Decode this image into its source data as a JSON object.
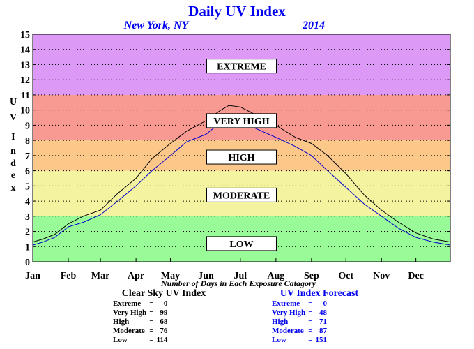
{
  "chart_data": {
    "type": "line",
    "title": "Daily UV Index",
    "subtitle_location": "New York, NY",
    "subtitle_year": "2014",
    "ylabel": [
      "U",
      "V",
      "I",
      "n",
      "d",
      "e",
      "x"
    ],
    "xlabel": "Number of Days in Each Exposure Catagory",
    "ylim": [
      0,
      15
    ],
    "xlim": [
      1,
      365
    ],
    "y_ticks": [
      0,
      1,
      2,
      3,
      4,
      5,
      6,
      7,
      8,
      9,
      10,
      11,
      12,
      13,
      14,
      15
    ],
    "x_tick_labels": [
      {
        "label": "Jan",
        "day": 1
      },
      {
        "label": "Feb",
        "day": 32
      },
      {
        "label": "Mar",
        "day": 60
      },
      {
        "label": "Apr",
        "day": 91
      },
      {
        "label": "May",
        "day": 121
      },
      {
        "label": "Jun",
        "day": 152
      },
      {
        "label": "Jul",
        "day": 182
      },
      {
        "label": "Aug",
        "day": 213
      },
      {
        "label": "Sep",
        "day": 244
      },
      {
        "label": "Oct",
        "day": 274
      },
      {
        "label": "Nov",
        "day": 305
      },
      {
        "label": "Dec",
        "day": 335
      }
    ],
    "grid": "horizontal dotted",
    "zones": [
      {
        "label": "LOW",
        "from": 0,
        "to": 3,
        "color": "#98fb98",
        "label_y": 1.2
      },
      {
        "label": "MODERATE",
        "from": 3,
        "to": 6,
        "color": "#f3f3a0",
        "label_y": 4.4
      },
      {
        "label": "HIGH",
        "from": 6,
        "to": 8,
        "color": "#fcc88a",
        "label_y": 6.9
      },
      {
        "label": "VERY HIGH",
        "from": 8,
        "to": 11,
        "color": "#f99a92",
        "label_y": 9.3
      },
      {
        "label": "EXTREME",
        "from": 11,
        "to": 15,
        "color": "#dd99f6",
        "label_y": 12.9
      }
    ],
    "series": [
      {
        "color": "#000000",
        "x": [
          1,
          10,
          20,
          32,
          45,
          60,
          75,
          91,
          105,
          121,
          135,
          152,
          165,
          172,
          182,
          195,
          213,
          230,
          244,
          258,
          274,
          290,
          305,
          320,
          335,
          350,
          365
        ],
        "y": [
          1.3,
          1.5,
          1.8,
          2.5,
          3.0,
          3.4,
          4.5,
          5.5,
          6.8,
          7.8,
          8.6,
          9.3,
          10.0,
          10.3,
          10.2,
          9.7,
          9.0,
          8.2,
          7.8,
          7.0,
          5.8,
          4.4,
          3.4,
          2.6,
          1.9,
          1.5,
          1.3
        ]
      },
      {
        "color": "#0000cc",
        "x": [
          1,
          10,
          20,
          32,
          45,
          60,
          75,
          91,
          105,
          121,
          135,
          152,
          165,
          172,
          182,
          195,
          213,
          230,
          244,
          258,
          274,
          290,
          305,
          320,
          335,
          350,
          365
        ],
        "y": [
          1.1,
          1.3,
          1.6,
          2.3,
          2.6,
          3.1,
          4.0,
          5.0,
          6.0,
          7.0,
          7.9,
          8.4,
          9.2,
          9.5,
          9.4,
          8.8,
          8.2,
          7.6,
          7.0,
          6.0,
          4.9,
          3.8,
          3.0,
          2.2,
          1.6,
          1.3,
          1.1
        ]
      }
    ],
    "clear_sky": {
      "title": "Clear Sky UV Index",
      "rows": [
        {
          "label": "Extreme",
          "sep": "=",
          "value": "0"
        },
        {
          "label": "Very High",
          "sep": "=",
          "value": "99"
        },
        {
          "label": "High",
          "sep": "=",
          "value": "68"
        },
        {
          "label": "Moderate",
          "sep": "=",
          "value": "76"
        },
        {
          "label": "Low",
          "sep": "=",
          "value": "114"
        }
      ]
    },
    "forecast": {
      "title": "UV Index Forecast",
      "rows": [
        {
          "label": "Extreme",
          "sep": "=",
          "value": "0"
        },
        {
          "label": "Very High",
          "sep": "=",
          "value": "48"
        },
        {
          "label": "High",
          "sep": "=",
          "value": "71"
        },
        {
          "label": "Moderate",
          "sep": "=",
          "value": "87"
        },
        {
          "label": "Low",
          "sep": "=",
          "value": "151"
        }
      ]
    }
  }
}
